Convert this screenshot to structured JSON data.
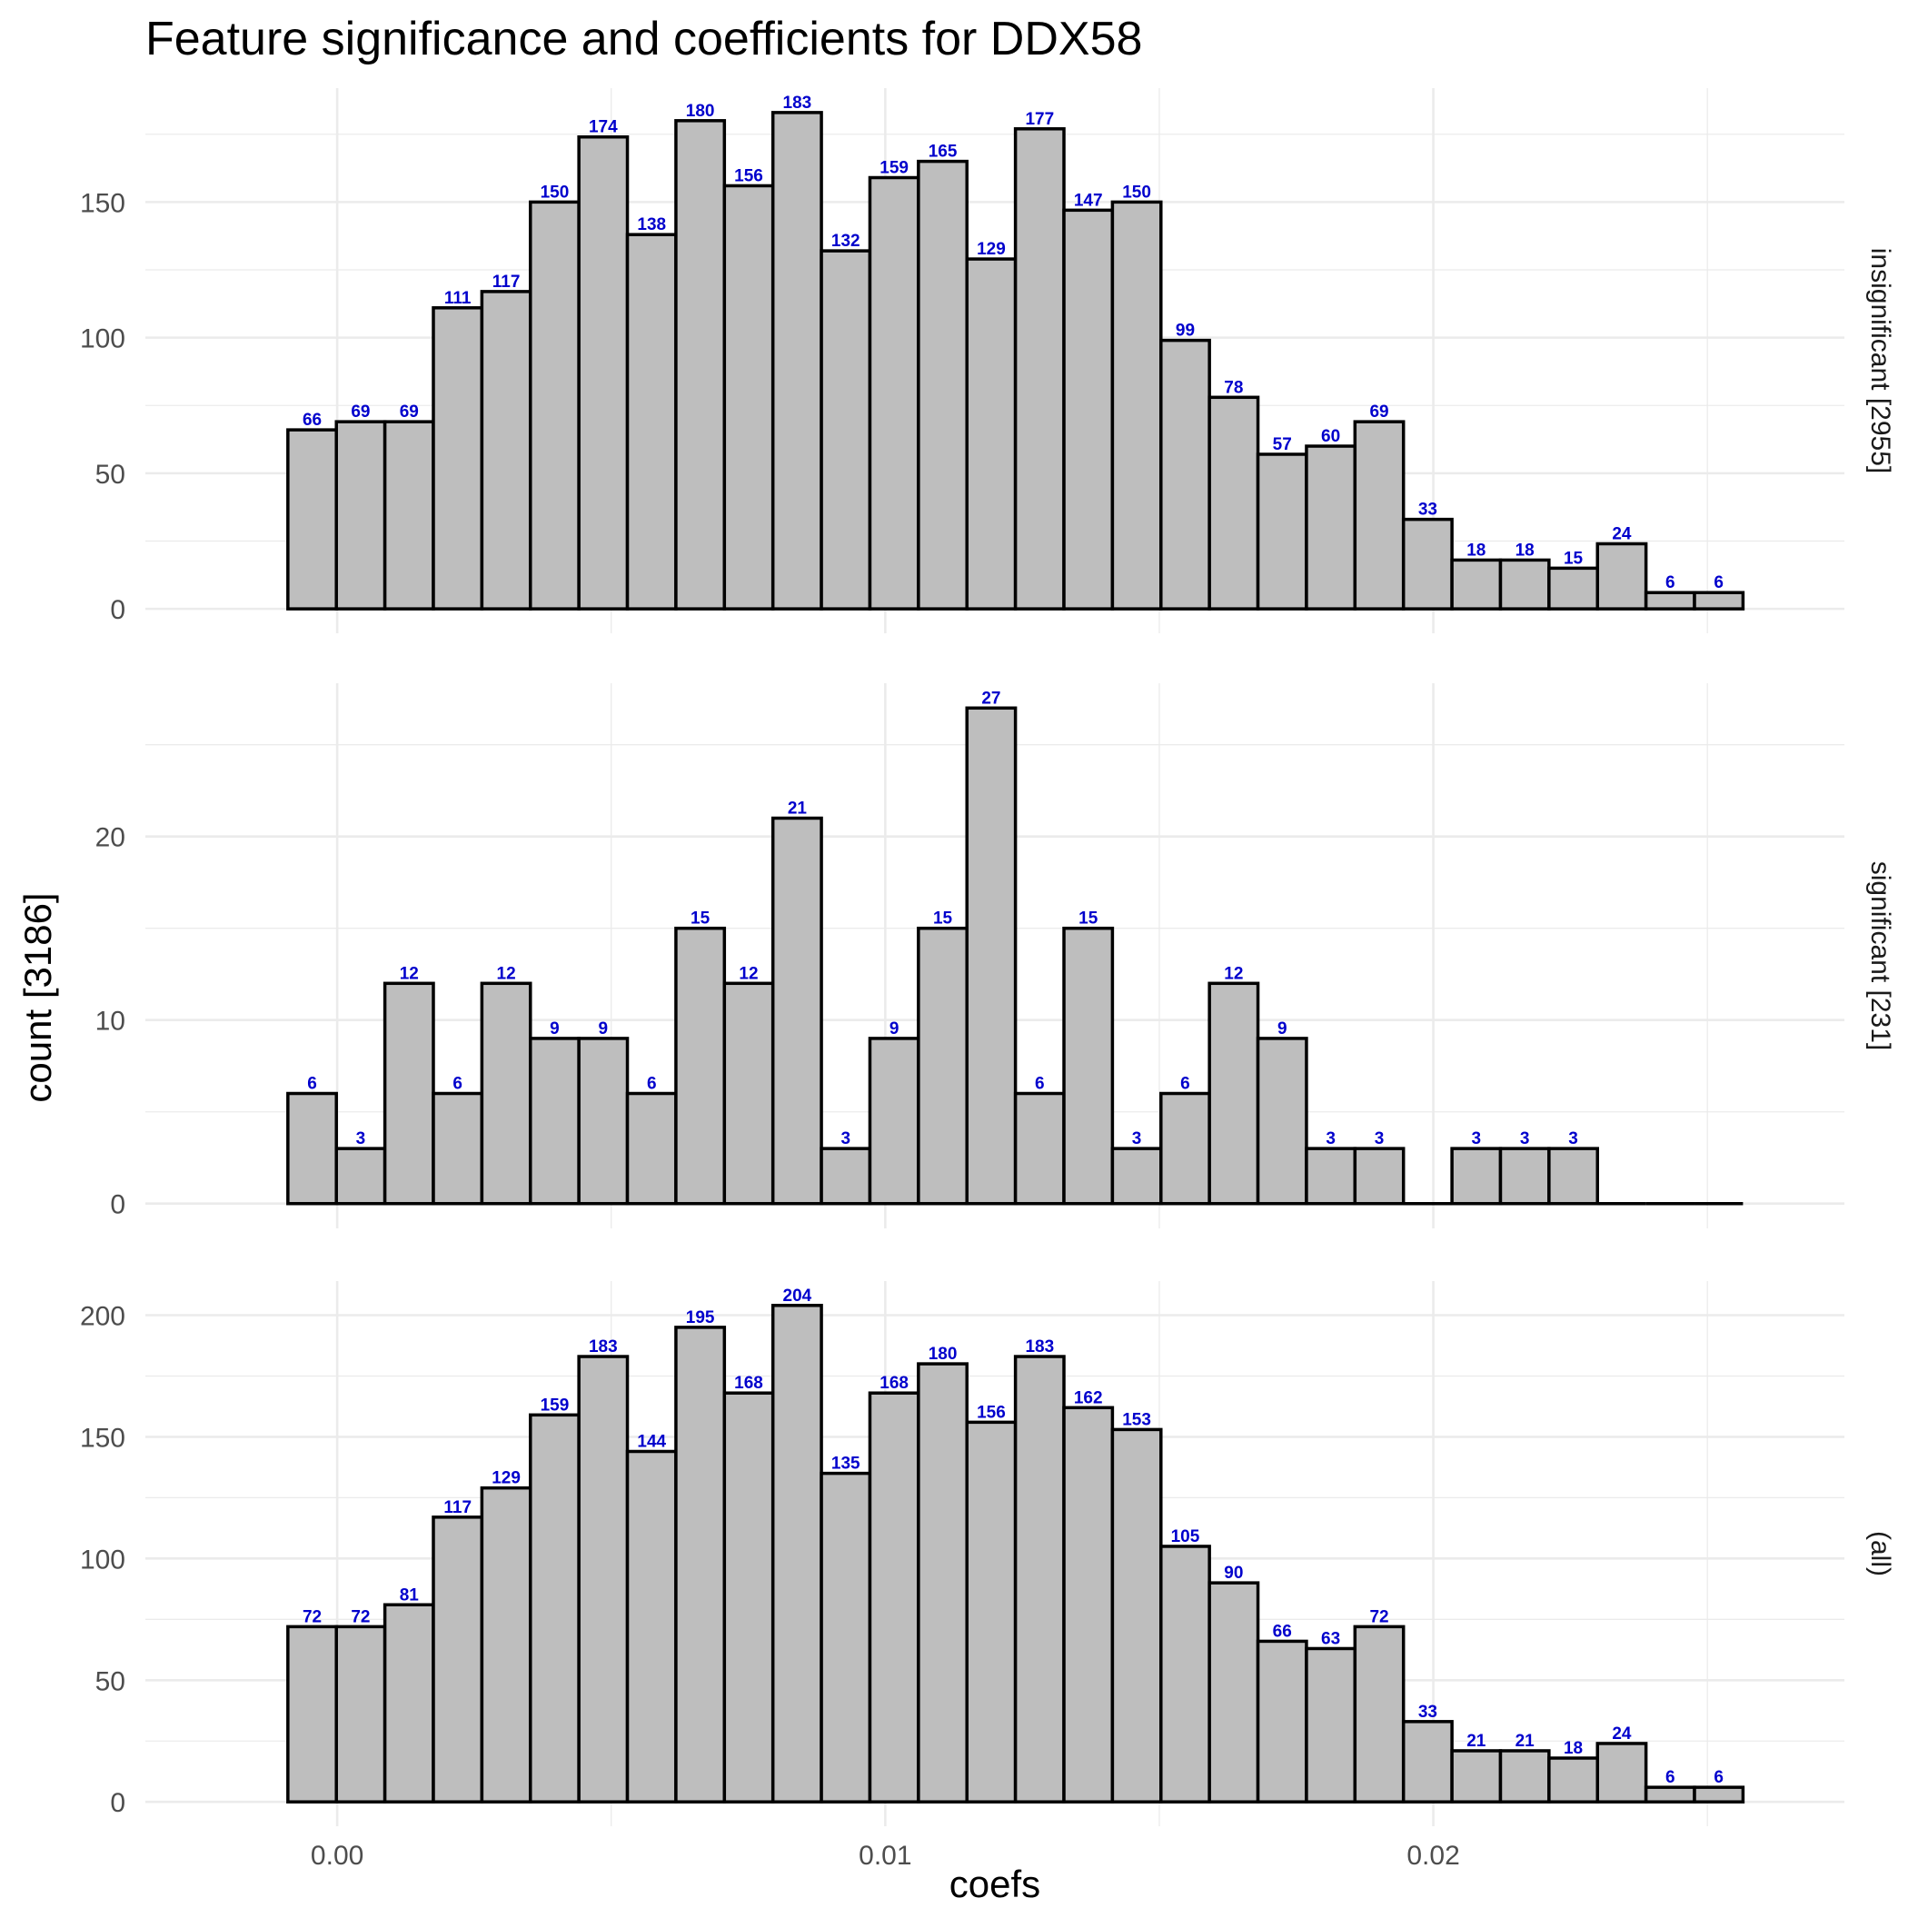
{
  "chart_data": {
    "type": "bar",
    "title": "Feature significance and coefficients for DDX58",
    "xlabel": "coefs",
    "ylabel": "count [3186]",
    "xlim": [
      -0.0035,
      0.0275
    ],
    "x_ticks": [
      0.0,
      0.01,
      0.02
    ],
    "x_tick_labels": [
      "0.00",
      "0.01",
      "0.02"
    ],
    "bin_width": 0.000885,
    "bin_start": -0.0009,
    "bar_fill": "#bebebe",
    "bar_outline": "#000000",
    "label_color": "#0000cc",
    "grid": true,
    "panels": [
      {
        "strip_label": "insignificant [2955]",
        "ylim": [
          -9,
          192
        ],
        "y_ticks": [
          0,
          50,
          100,
          150
        ],
        "y_tick_labels": [
          "0",
          "50",
          "100",
          "150"
        ],
        "values": [
          66,
          69,
          69,
          111,
          117,
          150,
          174,
          138,
          180,
          156,
          183,
          132,
          159,
          165,
          129,
          177,
          147,
          150,
          99,
          78,
          57,
          60,
          69,
          33,
          18,
          18,
          15,
          24,
          6,
          6
        ],
        "labels": [
          "66",
          "69",
          "69",
          "111",
          "117",
          "150",
          "174",
          "138",
          "180",
          "156",
          "183",
          "132",
          "159",
          "165",
          "129",
          "177",
          "147",
          "150",
          "99",
          "78",
          "57",
          "60",
          "69",
          "33",
          "18",
          "18",
          "15",
          "24",
          "6",
          "6"
        ]
      },
      {
        "strip_label": "significant [231]",
        "ylim": [
          -1.35,
          28.35
        ],
        "y_ticks": [
          0,
          10,
          20
        ],
        "y_tick_labels": [
          "0",
          "10",
          "20"
        ],
        "values": [
          6,
          3,
          12,
          6,
          12,
          9,
          9,
          6,
          15,
          12,
          21,
          3,
          9,
          15,
          27,
          6,
          15,
          3,
          6,
          12,
          9,
          3,
          3,
          0,
          3,
          3,
          3,
          0,
          0,
          0
        ],
        "labels": [
          "6",
          "3",
          "12",
          "6",
          "12",
          "9",
          "9",
          "6",
          "15",
          "12",
          "21",
          "3",
          "9",
          "15",
          "27",
          "6",
          "15",
          "3",
          "6",
          "12",
          "9",
          "3",
          "3",
          "",
          "3",
          "3",
          "3",
          "",
          "",
          ""
        ]
      },
      {
        "strip_label": "(all)",
        "ylim": [
          -10,
          214
        ],
        "y_ticks": [
          0,
          50,
          100,
          150,
          200
        ],
        "y_tick_labels": [
          "0",
          "50",
          "100",
          "150",
          "200"
        ],
        "values": [
          72,
          72,
          81,
          117,
          129,
          159,
          183,
          144,
          195,
          168,
          204,
          135,
          168,
          180,
          156,
          183,
          162,
          153,
          105,
          90,
          66,
          63,
          72,
          33,
          21,
          21,
          18,
          24,
          6,
          6
        ],
        "labels": [
          "72",
          "72",
          "81",
          "117",
          "129",
          "159",
          "183",
          "144",
          "195",
          "168",
          "204",
          "135",
          "168",
          "180",
          "156",
          "183",
          "162",
          "153",
          "105",
          "90",
          "66",
          "63",
          "72",
          "33",
          "21",
          "21",
          "18",
          "24",
          "6",
          "6"
        ]
      }
    ]
  }
}
